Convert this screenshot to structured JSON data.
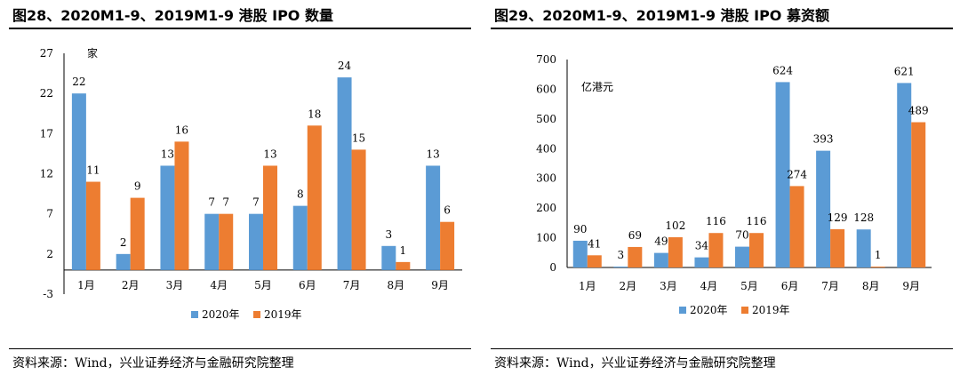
{
  "colors": {
    "s2020": "#5B9BD5",
    "s2019": "#ED7D31"
  },
  "left": {
    "title": "图28、2020M1-9、2019M1-9 港股 IPO 数量",
    "source": "资料来源：Wind，兴业证券经济与金融研究院整理"
  },
  "right": {
    "title": "图29、2020M1-9、2019M1-9 港股 IPO 募资额",
    "source": "资料来源：Wind，兴业证券经济与金融研究院整理"
  },
  "chart_data": [
    {
      "type": "bar",
      "unit": "家",
      "categories": [
        "1月",
        "2月",
        "3月",
        "4月",
        "5月",
        "6月",
        "7月",
        "8月",
        "9月"
      ],
      "series": [
        {
          "name": "2020年",
          "values": [
            22,
            2,
            13,
            7,
            7,
            8,
            24,
            3,
            13
          ]
        },
        {
          "name": "2019年",
          "values": [
            11,
            9,
            16,
            7,
            13,
            18,
            15,
            1,
            6
          ]
        }
      ],
      "yticks": [
        -3,
        2,
        7,
        12,
        17,
        22,
        27
      ],
      "ylim": [
        -3,
        27
      ],
      "legend_position": "bottom"
    },
    {
      "type": "bar",
      "unit": "亿港元",
      "categories": [
        "1月",
        "2月",
        "3月",
        "4月",
        "5月",
        "6月",
        "7月",
        "8月",
        "9月"
      ],
      "series": [
        {
          "name": "2020年",
          "values": [
            90,
            3,
            49,
            34,
            70,
            624,
            393,
            128,
            621
          ]
        },
        {
          "name": "2019年",
          "values": [
            41,
            69,
            102,
            116,
            116,
            274,
            129,
            1,
            489
          ]
        }
      ],
      "yticks": [
        0,
        100,
        200,
        300,
        400,
        500,
        600,
        700
      ],
      "ylim": [
        0,
        700
      ],
      "legend_position": "bottom"
    }
  ]
}
